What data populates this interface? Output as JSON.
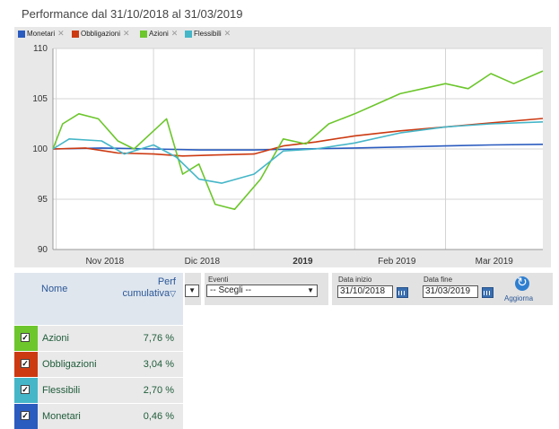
{
  "title": "Performance dal 31/10/2018 al 31/03/2019",
  "legend": [
    {
      "name": "Monetari",
      "color": "#2a5bbf"
    },
    {
      "name": "Obbligazioni",
      "color": "#cc3a12"
    },
    {
      "name": "Azioni",
      "color": "#6cc62c"
    },
    {
      "name": "Flessibili",
      "color": "#45b6c8"
    }
  ],
  "chart_data": {
    "type": "line",
    "y_ticks": [
      "110",
      "105",
      "100",
      "95",
      "90"
    ],
    "ylim": [
      90,
      110
    ],
    "x_ticks": [
      "Nov 2018",
      "Dic 2018",
      "2019",
      "Feb 2019",
      "Mar 2019"
    ],
    "x_start": "2018-10-31",
    "x_end": "2019-03-31",
    "grid": true,
    "series": [
      {
        "name": "Monetari",
        "color": "#2a5bbf",
        "x": [
          "2018-10-31",
          "2018-11-15",
          "2018-12-01",
          "2018-12-15",
          "2019-01-01",
          "2019-01-15",
          "2019-02-01",
          "2019-02-15",
          "2019-03-01",
          "2019-03-15",
          "2019-03-31"
        ],
        "values": [
          100,
          100.1,
          100.0,
          99.9,
          99.9,
          100.0,
          100.1,
          100.2,
          100.3,
          100.4,
          100.46
        ]
      },
      {
        "name": "Obbligazioni",
        "color": "#cc3a12",
        "x": [
          "2018-10-31",
          "2018-11-10",
          "2018-11-20",
          "2018-12-01",
          "2018-12-10",
          "2018-12-20",
          "2019-01-01",
          "2019-01-10",
          "2019-01-20",
          "2019-02-01",
          "2019-02-15",
          "2019-03-01",
          "2019-03-15",
          "2019-03-31"
        ],
        "values": [
          100,
          100.1,
          99.6,
          99.5,
          99.3,
          99.4,
          99.5,
          100.3,
          100.7,
          101.3,
          101.8,
          102.2,
          102.6,
          103.04
        ]
      },
      {
        "name": "Azioni",
        "color": "#6cc62c",
        "x": [
          "2018-10-31",
          "2018-11-03",
          "2018-11-08",
          "2018-11-14",
          "2018-11-20",
          "2018-11-25",
          "2018-11-30",
          "2018-12-05",
          "2018-12-10",
          "2018-12-15",
          "2018-12-20",
          "2018-12-26",
          "2019-01-03",
          "2019-01-10",
          "2019-01-17",
          "2019-01-24",
          "2019-02-01",
          "2019-02-08",
          "2019-02-15",
          "2019-02-22",
          "2019-03-01",
          "2019-03-08",
          "2019-03-15",
          "2019-03-22",
          "2019-03-31"
        ],
        "values": [
          100,
          102.5,
          103.5,
          103.0,
          100.8,
          100.0,
          101.5,
          103.0,
          97.5,
          98.5,
          94.5,
          94.0,
          97.0,
          101.0,
          100.5,
          102.5,
          103.5,
          104.5,
          105.5,
          106.0,
          106.5,
          106.0,
          107.5,
          106.5,
          107.76
        ]
      },
      {
        "name": "Flessibili",
        "color": "#45b6c8",
        "x": [
          "2018-10-31",
          "2018-11-05",
          "2018-11-15",
          "2018-11-22",
          "2018-12-01",
          "2018-12-08",
          "2018-12-15",
          "2018-12-22",
          "2019-01-01",
          "2019-01-10",
          "2019-01-20",
          "2019-02-01",
          "2019-02-15",
          "2019-03-01",
          "2019-03-15",
          "2019-03-31"
        ],
        "values": [
          100,
          101.0,
          100.8,
          99.5,
          100.4,
          99.2,
          97.0,
          96.6,
          97.5,
          99.8,
          100.0,
          100.6,
          101.6,
          102.2,
          102.5,
          102.7
        ]
      }
    ]
  },
  "controls": {
    "eventi_label": "Eventi",
    "eventi_value": "-- Scegli --",
    "left_select_arrow": "▼",
    "data_inizio_label": "Data inizio",
    "data_inizio_value": "31/10/2018",
    "data_fine_label": "Data fine",
    "data_fine_value": "31/03/2019",
    "aggiorna_label": "Aggiorna"
  },
  "table": {
    "col_nome": "Nome",
    "col_perf_line1": "Perf",
    "col_perf_line2": "cumulativa",
    "sort_icon": "▽",
    "rows": [
      {
        "name": "Azioni",
        "value": "7,76 %",
        "color": "#6cc62c"
      },
      {
        "name": "Obbligazioni",
        "value": "3,04 %",
        "color": "#cc3a12"
      },
      {
        "name": "Flessibili",
        "value": "2,70 %",
        "color": "#45b6c8"
      },
      {
        "name": "Monetari",
        "value": "0,46 %",
        "color": "#2a5bbf"
      }
    ]
  }
}
